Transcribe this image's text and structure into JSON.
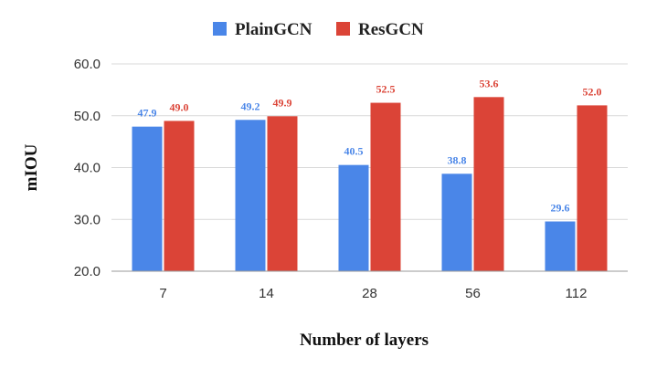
{
  "chart_data": {
    "type": "bar",
    "categories": [
      "7",
      "14",
      "28",
      "56",
      "112"
    ],
    "series": [
      {
        "name": "PlainGCN",
        "color": "#4a86e8",
        "values": [
          47.9,
          49.2,
          40.5,
          38.8,
          29.6
        ]
      },
      {
        "name": "ResGCN",
        "color": "#db4437",
        "values": [
          49.0,
          49.9,
          52.5,
          53.6,
          52.0
        ]
      }
    ],
    "xlabel": "Number of layers",
    "ylabel": "mIOU",
    "ylim": [
      20,
      60
    ],
    "yticks": [
      "20.0",
      "30.0",
      "40.0",
      "50.0",
      "60.0"
    ],
    "grid": true,
    "legend_position": "top-center"
  }
}
